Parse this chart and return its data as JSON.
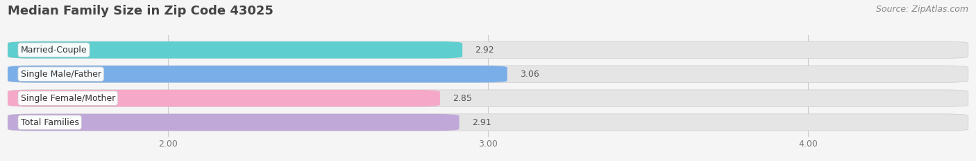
{
  "title": "Median Family Size in Zip Code 43025",
  "source": "Source: ZipAtlas.com",
  "categories": [
    "Married-Couple",
    "Single Male/Father",
    "Single Female/Mother",
    "Total Families"
  ],
  "values": [
    2.92,
    3.06,
    2.85,
    2.91
  ],
  "bar_colors": [
    "#5ecece",
    "#7aaee8",
    "#f5a8c8",
    "#c0a8d8"
  ],
  "xlim": [
    1.5,
    4.5
  ],
  "xstart": 1.5,
  "xticks": [
    2.0,
    3.0,
    4.0
  ],
  "xtick_labels": [
    "2.00",
    "3.00",
    "4.00"
  ],
  "background_color": "#f5f5f5",
  "bar_background_color": "#e5e5e5",
  "title_fontsize": 13,
  "source_fontsize": 9,
  "bar_height": 0.7,
  "value_fontsize": 9,
  "label_fontsize": 9,
  "tick_fontsize": 9
}
